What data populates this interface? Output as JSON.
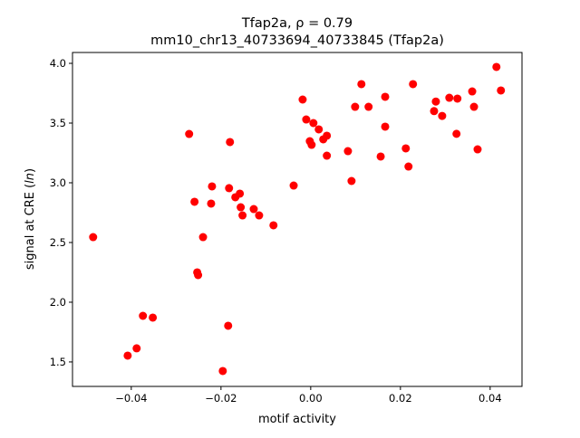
{
  "chart_data": {
    "type": "scatter",
    "title_line1": "Tfap2a, ρ = 0.79",
    "title_line2": "mm10_chr13_40733694_40733845 (Tfap2a)",
    "xlabel": "motif activity",
    "ylabel_prefix": "signal at CRE (",
    "ylabel_italic": "ln",
    "ylabel_suffix": ")",
    "xlim": [
      -0.0531,
      0.0471
    ],
    "ylim": [
      1.295,
      4.091
    ],
    "xticks": [
      -0.04,
      -0.02,
      0.0,
      0.02,
      0.04
    ],
    "xtick_labels": [
      "−0.04",
      "−0.02",
      "0.00",
      "0.02",
      "0.04"
    ],
    "yticks": [
      1.5,
      2.0,
      2.5,
      3.0,
      3.5,
      4.0
    ],
    "ytick_labels": [
      "1.5",
      "2.0",
      "2.5",
      "3.0",
      "3.5",
      "4.0"
    ],
    "grid": false,
    "marker_color": "#ff0000",
    "points": [
      [
        -0.0485,
        2.545
      ],
      [
        -0.0408,
        1.553
      ],
      [
        -0.0388,
        1.614
      ],
      [
        -0.0374,
        1.886
      ],
      [
        -0.0352,
        1.871
      ],
      [
        -0.0271,
        3.409
      ],
      [
        -0.0259,
        2.841
      ],
      [
        -0.0253,
        2.25
      ],
      [
        -0.0251,
        2.227
      ],
      [
        -0.024,
        2.545
      ],
      [
        -0.0222,
        2.826
      ],
      [
        -0.022,
        2.97
      ],
      [
        -0.0196,
        1.424
      ],
      [
        -0.0184,
        1.803
      ],
      [
        -0.0182,
        2.955
      ],
      [
        -0.018,
        3.341
      ],
      [
        -0.0168,
        2.879
      ],
      [
        -0.0158,
        2.909
      ],
      [
        -0.0156,
        2.795
      ],
      [
        -0.0152,
        2.727
      ],
      [
        -0.0127,
        2.78
      ],
      [
        -0.0115,
        2.727
      ],
      [
        -0.0083,
        2.644
      ],
      [
        -0.0038,
        2.977
      ],
      [
        -0.0018,
        3.697
      ],
      [
        -0.001,
        3.53
      ],
      [
        -0.0002,
        3.348
      ],
      [
        0.0002,
        3.318
      ],
      [
        0.0006,
        3.5
      ],
      [
        0.0018,
        3.447
      ],
      [
        0.0028,
        3.364
      ],
      [
        0.0036,
        3.394
      ],
      [
        0.0036,
        3.227
      ],
      [
        0.0083,
        3.265
      ],
      [
        0.0091,
        3.015
      ],
      [
        0.0099,
        3.636
      ],
      [
        0.0113,
        3.826
      ],
      [
        0.0129,
        3.636
      ],
      [
        0.0156,
        3.22
      ],
      [
        0.0166,
        3.47
      ],
      [
        0.0166,
        3.72
      ],
      [
        0.0212,
        3.288
      ],
      [
        0.0218,
        3.136
      ],
      [
        0.0228,
        3.826
      ],
      [
        0.0275,
        3.6
      ],
      [
        0.0279,
        3.68
      ],
      [
        0.0293,
        3.56
      ],
      [
        0.0309,
        3.712
      ],
      [
        0.0325,
        3.41
      ],
      [
        0.0327,
        3.705
      ],
      [
        0.036,
        3.765
      ],
      [
        0.0364,
        3.636
      ],
      [
        0.0372,
        3.28
      ],
      [
        0.0414,
        3.97
      ],
      [
        0.0424,
        3.773
      ]
    ]
  }
}
